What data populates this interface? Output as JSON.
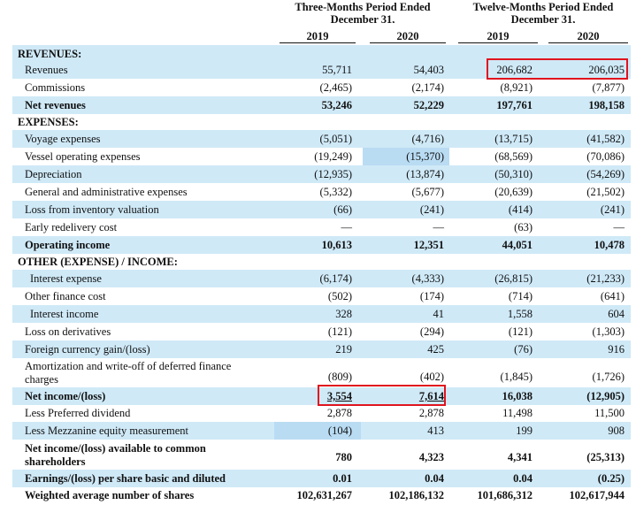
{
  "header": {
    "group1_line1": "Three-Months Period Ended",
    "group1_line2": "December 31,",
    "group2_line1": "Twelve-Months Period Ended",
    "group2_line2": "December 31,",
    "years": [
      "2019",
      "2020",
      "2019",
      "2020"
    ]
  },
  "rows": [
    {
      "label": "REVENUES:",
      "bold": true,
      "v": [
        "",
        "",
        "",
        ""
      ]
    },
    {
      "label": "Revenues",
      "v": [
        "55,711",
        "54,403",
        "206,682",
        "206,035"
      ]
    },
    {
      "label": "Commissions",
      "v": [
        "(2,465)",
        "(2,174)",
        "(8,921)",
        "(7,877)"
      ]
    },
    {
      "label": "Net revenues",
      "bold": true,
      "v": [
        "53,246",
        "52,229",
        "197,761",
        "198,158"
      ]
    },
    {
      "label": "EXPENSES:",
      "bold": true,
      "v": [
        "",
        "",
        "",
        ""
      ]
    },
    {
      "label": "Voyage expenses",
      "v": [
        "(5,051)",
        "(4,716)",
        "(13,715)",
        "(41,582)"
      ]
    },
    {
      "label": "Vessel operating expenses",
      "v": [
        "(19,249)",
        "(15,370)",
        "(68,569)",
        "(70,086)"
      ]
    },
    {
      "label": "Depreciation",
      "v": [
        "(12,935)",
        "(13,874)",
        "(50,310)",
        "(54,269)"
      ]
    },
    {
      "label": "General and administrative expenses",
      "v": [
        "(5,332)",
        "(5,677)",
        "(20,639)",
        "(21,502)"
      ]
    },
    {
      "label": "Loss from inventory valuation",
      "v": [
        "(66)",
        "(241)",
        "(414)",
        "(241)"
      ]
    },
    {
      "label": "Early redelivery cost",
      "v": [
        "—",
        "—",
        "(63)",
        "—"
      ]
    },
    {
      "label": "Operating income",
      "bold": true,
      "v": [
        "10,613",
        "12,351",
        "44,051",
        "10,478"
      ]
    },
    {
      "label": "OTHER (EXPENSE) / INCOME:",
      "bold": true,
      "v": [
        "",
        "",
        "",
        ""
      ]
    },
    {
      "label": "Interest expense",
      "v": [
        "(6,174)",
        "(4,333)",
        "(26,815)",
        "(21,233)"
      ]
    },
    {
      "label": "Other finance cost",
      "v": [
        "(502)",
        "(174)",
        "(714)",
        "(641)"
      ]
    },
    {
      "label": "Interest income",
      "v": [
        "328",
        "41",
        "1,558",
        "604"
      ]
    },
    {
      "label": "Loss on derivatives",
      "v": [
        "(121)",
        "(294)",
        "(121)",
        "(1,303)"
      ]
    },
    {
      "label": "Foreign currency gain/(loss)",
      "v": [
        "219",
        "425",
        "(76)",
        "916"
      ]
    },
    {
      "label_line1": "Amortization and write-off of deferred finance",
      "label_line2": "charges",
      "v": [
        "(809)",
        "(402)",
        "(1,845)",
        "(1,726)"
      ]
    },
    {
      "label": "Net income/(loss)",
      "bold": true,
      "v": [
        "3,554",
        "7,614",
        "16,038",
        "(12,905)"
      ]
    },
    {
      "label": "Less Preferred dividend",
      "v": [
        "2,878",
        "2,878",
        "11,498",
        "11,500"
      ]
    },
    {
      "label": "Less Mezzanine equity measurement",
      "v": [
        "(104)",
        "413",
        "199",
        "908"
      ]
    },
    {
      "label_line1": "Net income/(loss) available to common",
      "label_line2": "shareholders",
      "bold": true,
      "v": [
        "780",
        "4,323",
        "4,341",
        "(25,313)"
      ]
    },
    {
      "label": "Earnings/(loss) per share basic and diluted",
      "bold": true,
      "v": [
        "0.01",
        "0.04",
        "0.04",
        "(0.25)"
      ]
    },
    {
      "label": "Weighted average number of shares",
      "bold": true,
      "v": [
        "102,631,267",
        "102,186,132",
        "101,686,312",
        "102,617,944"
      ]
    }
  ],
  "colors": {
    "row_shade": "#cfe9f7",
    "cell_highlight": "#b9dcf3",
    "annotation_box": "#e0141e"
  }
}
